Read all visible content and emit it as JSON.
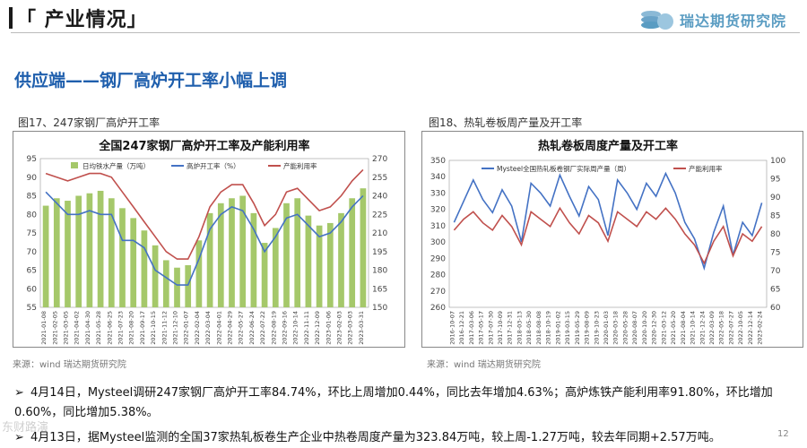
{
  "header": {
    "title": "「 产业情况」",
    "logo_text": "瑞达期货研究院"
  },
  "subtitle": "供应端——钢厂高炉开工率小幅上调",
  "figures": [
    {
      "caption": "图17、247家钢厂高炉开工率",
      "source": "来源：wind   瑞达期货研究院"
    },
    {
      "caption": "图18、热轧卷板周产量及开工率",
      "source": "来源：wind   瑞达期货研究院"
    }
  ],
  "bullets": [
    "4月14日，Mysteel调研247家钢厂高炉开工率84.74%，环比上周增加0.44%，同比去年增加4.63%；高炉炼铁产能利用率91.80%，环比增加0.60%，同比增加5.38%。",
    "4月13日，据Mysteel监测的全国37家热轧板卷生产企业中热卷周度产量为323.84万吨，较上周-1.27万吨，较去年同期+2.57万吨。"
  ],
  "page_number": "12",
  "watermark": "东财路演",
  "colors": {
    "blue_title": "#1f5fad",
    "bar_green": "#a5c86a",
    "line_blue": "#4472c4",
    "line_red": "#c0504d"
  },
  "chart_data": [
    {
      "type": "bar",
      "title": "全国247家钢厂高炉开工率及产能利用率",
      "legend": [
        "日均铁水产量（万吨）",
        "高炉开工率（%）",
        "产能利用率"
      ],
      "legend_position": "top",
      "ylim_left": [
        55,
        95
      ],
      "yticks_left": [
        55,
        60,
        65,
        70,
        75,
        80,
        85,
        90,
        95
      ],
      "ylim_right": [
        150,
        270
      ],
      "yticks_right": [
        150,
        165,
        180,
        195,
        210,
        225,
        240,
        255,
        270
      ],
      "x_labels": [
        "2021-01-08",
        "2021-02-05",
        "2021-03-05",
        "2021-04-02",
        "2021-04-30",
        "2021-05-28",
        "2021-06-25",
        "2021-07-23",
        "2021-08-20",
        "2021-09-17",
        "2021-10-15",
        "2021-11-12",
        "2021-12-10",
        "2022-01-07",
        "2022-02-04",
        "2022-03-04",
        "2022-04-01",
        "2022-04-29",
        "2022-05-27",
        "2022-06-24",
        "2022-07-22",
        "2022-08-19",
        "2022-09-16",
        "2022-10-14",
        "2022-11-11",
        "2022-12-09",
        "2023-01-06",
        "2023-02-03",
        "2023-03-03",
        "2023-03-31"
      ],
      "series": [
        {
          "name": "日均铁水产量（万吨）",
          "axis": "right",
          "values": [
            232,
            238,
            236,
            240,
            242,
            244,
            238,
            230,
            222,
            212,
            200,
            188,
            182,
            184,
            204,
            226,
            234,
            238,
            240,
            226,
            202,
            214,
            234,
            238,
            224,
            216,
            218,
            226,
            238,
            246
          ]
        },
        {
          "name": "高炉开工率（%）",
          "axis": "left",
          "values": [
            86,
            83,
            80,
            80,
            81,
            80,
            80,
            73,
            73,
            71,
            65,
            63,
            61,
            61,
            68,
            76,
            80,
            82,
            81,
            76,
            70,
            74,
            79,
            80,
            77,
            74,
            75,
            78,
            82,
            85
          ]
        },
        {
          "name": "产能利用率",
          "axis": "left",
          "values": [
            91,
            90,
            89,
            90,
            91,
            91,
            90,
            86,
            82,
            78,
            74,
            70,
            68,
            68,
            74,
            82,
            86,
            88,
            88,
            83,
            77,
            80,
            86,
            87,
            84,
            81,
            82,
            85,
            89,
            92
          ]
        }
      ]
    },
    {
      "type": "line",
      "title": "热轧卷板周度产量及开工率",
      "legend": [
        "Mysteel全国热轧板卷钢厂实际周产量（周）",
        "产能利用率"
      ],
      "legend_position": "top",
      "ylim_left": [
        260,
        350
      ],
      "yticks_left": [
        260,
        270,
        280,
        290,
        300,
        310,
        320,
        330,
        340,
        350
      ],
      "ylim_right": [
        60,
        100
      ],
      "yticks_right": [
        60,
        65,
        70,
        75,
        80,
        85,
        90,
        95,
        100
      ],
      "x_labels": [
        "2016-10-07",
        "2016-12-21",
        "2017-03-06",
        "2017-05-17",
        "2017-07-30",
        "2017-10-09",
        "2017-12-31",
        "2018-03-13",
        "2018-05-30",
        "2018-08-08",
        "2018-10-19",
        "2019-01-02",
        "2019-03-15",
        "2019-05-29",
        "2019-08-09",
        "2019-10-23",
        "2020-01-03",
        "2020-03-18",
        "2020-05-28",
        "2020-08-07",
        "2020-10-20",
        "2020-12-30",
        "2021-03-12",
        "2021-05-20",
        "2021-08-04",
        "2021-10-14",
        "2021-12-24",
        "2022-03-09",
        "2022-05-18",
        "2022-07-27",
        "2022-10-05",
        "2022-12-14",
        "2023-02-24"
      ],
      "series": [
        {
          "name": "Mysteel全国热轧板卷钢厂实际周产量（周）",
          "axis": "left",
          "values": [
            312,
            325,
            338,
            326,
            318,
            332,
            322,
            300,
            336,
            330,
            322,
            341,
            328,
            316,
            334,
            326,
            304,
            338,
            330,
            320,
            336,
            328,
            342,
            330,
            312,
            302,
            284,
            306,
            322,
            292,
            312,
            304,
            324
          ]
        },
        {
          "name": "产能利用率",
          "axis": "right",
          "values": [
            81,
            84,
            86,
            83,
            81,
            85,
            82,
            77,
            86,
            84,
            82,
            87,
            83,
            80,
            85,
            83,
            78,
            86,
            84,
            82,
            86,
            84,
            87,
            84,
            80,
            77,
            72,
            78,
            82,
            74,
            80,
            78,
            82
          ]
        }
      ]
    }
  ]
}
